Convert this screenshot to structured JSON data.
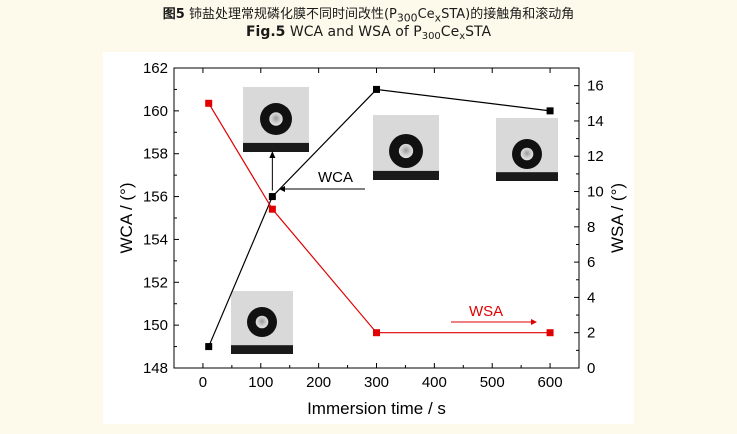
{
  "caption": {
    "cn_label": "图5",
    "cn_text": "铈盐处理常规磷化膜不同时间改性(P",
    "cn_sub1": "300",
    "cn_mid": "Ce",
    "cn_sub2": "x",
    "cn_tail": "STA)的接触角和滚动角",
    "en_label": "Fig.5",
    "en_text": "WCA and WSA of P",
    "en_sub1": "300",
    "en_mid": "Ce",
    "en_sub2": "x",
    "en_tail": "STA"
  },
  "colors": {
    "wca": "#000000",
    "wsa": "#e00000",
    "background": "#fefaeb",
    "panel": "#ffffff"
  },
  "chart_data": {
    "type": "line",
    "xlabel": "Immersion time / s",
    "ylabel_left": "WCA / (°)",
    "ylabel_right": "WSA / (°)",
    "x_ticks": [
      0,
      100,
      200,
      300,
      400,
      500,
      600
    ],
    "x_lim": [
      -50,
      650
    ],
    "y_left_ticks": [
      148,
      150,
      152,
      154,
      156,
      158,
      160,
      162
    ],
    "y_left_lim": [
      148,
      162
    ],
    "y_right_ticks": [
      0,
      2,
      4,
      6,
      8,
      10,
      12,
      14,
      16
    ],
    "y_right_lim": [
      0,
      17
    ],
    "series": [
      {
        "name": "WCA",
        "axis": "left",
        "x": [
          10,
          120,
          300,
          600
        ],
        "y": [
          149.0,
          156.0,
          161.0,
          160.0
        ]
      },
      {
        "name": "WSA",
        "axis": "right",
        "x": [
          10,
          120,
          300,
          600
        ],
        "y": [
          15.0,
          9.0,
          2.0,
          2.0
        ]
      }
    ],
    "annotations": [
      {
        "text": "WCA",
        "color": "black"
      },
      {
        "text": "WSA",
        "color": "red"
      }
    ]
  }
}
